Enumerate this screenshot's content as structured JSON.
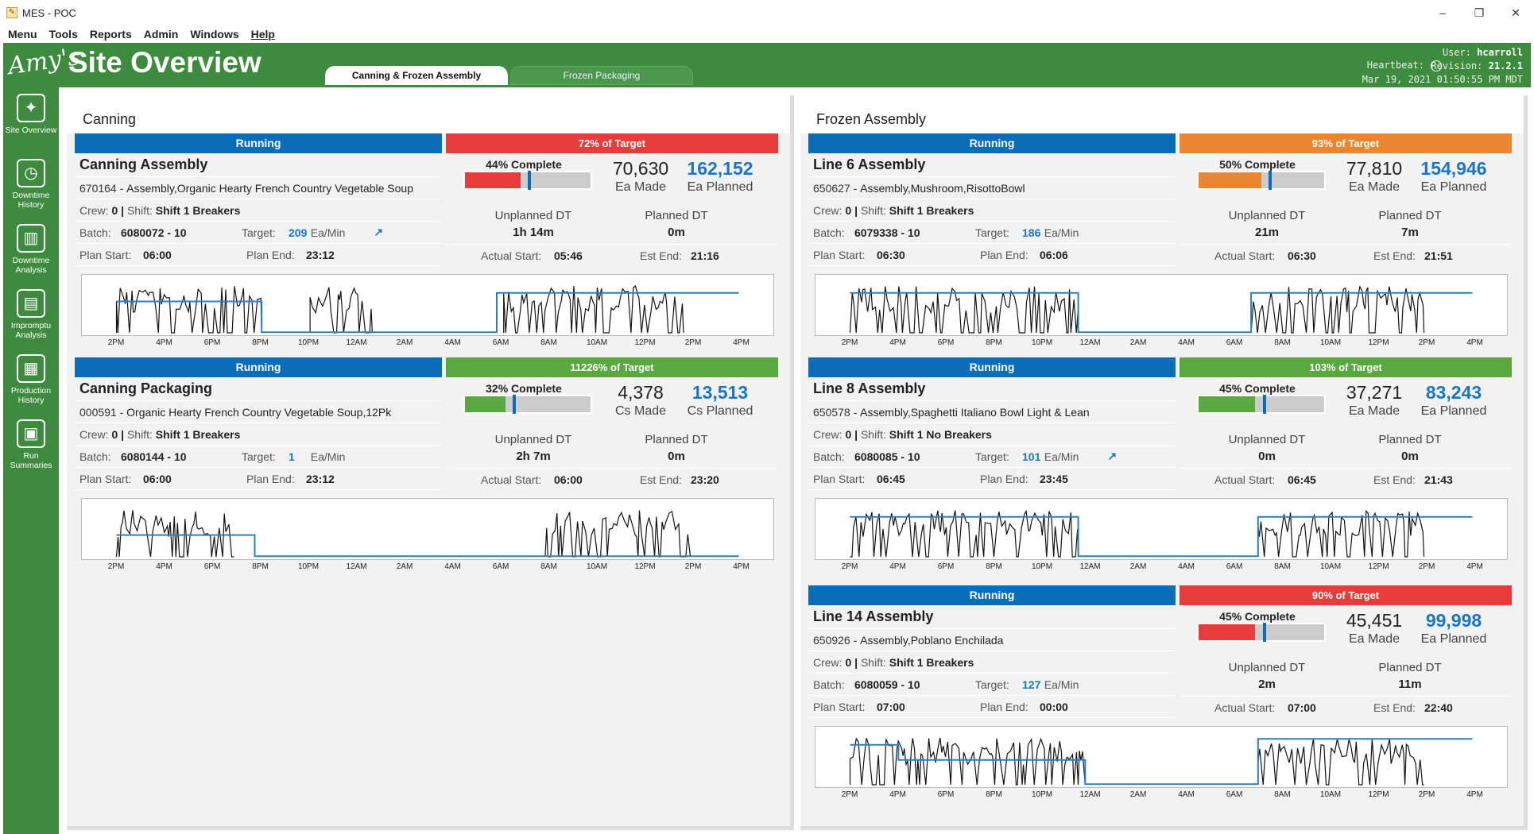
{
  "window": {
    "title": "MES - POC"
  },
  "menu": [
    "Menu",
    "Tools",
    "Reports",
    "Admin",
    "Windows",
    "Help"
  ],
  "header": {
    "logo": "Amy's",
    "title": "Site Overview",
    "tabs": [
      {
        "label": "Canning & Frozen Assembly",
        "active": true
      },
      {
        "label": "Frozen Packaging",
        "active": false
      }
    ],
    "user_label": "User:",
    "user": "hcarroll",
    "heartbeat_label": "Heartbeat:",
    "revision_label": "Revision:",
    "revision": "21.2.1",
    "datetime": "Mar 19, 2021 01:50:55 PM MDT"
  },
  "sidebar": [
    {
      "label": "Site Overview",
      "icon": "site-overview-icon"
    },
    {
      "label": "Downtime History",
      "icon": "clock-icon"
    },
    {
      "label": "Downtime Analysis",
      "icon": "bar-chart-icon"
    },
    {
      "label": "Impromptu Analysis",
      "icon": "impromptu-chart-icon"
    },
    {
      "label": "Production History",
      "icon": "calendar-icon"
    },
    {
      "label": "Run Summaries",
      "icon": "document-icon"
    }
  ],
  "chart_ticks": [
    "2PM",
    "4PM",
    "6PM",
    "8PM",
    "10PM",
    "12AM",
    "2AM",
    "4AM",
    "6AM",
    "8AM",
    "10AM",
    "12PM",
    "2PM",
    "4PM"
  ],
  "colors": {
    "status_blue": "#0a6db8",
    "target_red": "#e83c3a",
    "target_orange": "#e9862f",
    "target_green": "#59a840",
    "header_green": "#3e8b3f",
    "link_blue": "#1a76c2"
  },
  "sections": {
    "canning": "Canning",
    "frozen": "Frozen Assembly"
  },
  "lines": [
    {
      "section": "canning",
      "status": "Running",
      "target_text": "72% of Target",
      "target_pct": 72,
      "name": "Canning Assembly",
      "batch_code": "670164",
      "product": "Assembly,Organic Hearty French Country Vegetable Soup",
      "crew": "0",
      "shift": "Shift 1 Breakers",
      "batch": "6080072 - 10",
      "target_rate": "209",
      "rate_unit": "Ea/Min",
      "trend": true,
      "plan_start": "06:00",
      "plan_end": "23:12",
      "complete_text": "44% Complete",
      "complete_pct": 44,
      "made": "70,630",
      "made_label": "Ea Made",
      "planned": "162,152",
      "planned_label": "Ea Planned",
      "unplanned_dt": "1h 14m",
      "planned_dt": "0m",
      "actual_start": "05:46",
      "est_end": "21:16"
    },
    {
      "section": "canning",
      "status": "Running",
      "target_text": "11226% of Target",
      "target_pct": 11226,
      "name": "Canning Packaging",
      "batch_code": "000591",
      "product": "Organic Hearty French Country Vegetable Soup,12Pk",
      "crew": "0",
      "shift": "Shift 1 Breakers",
      "batch": "6080144 - 10",
      "target_rate": "1",
      "rate_unit": "Ea/Min",
      "trend": false,
      "plan_start": "06:00",
      "plan_end": "23:12",
      "complete_text": "32% Complete",
      "complete_pct": 32,
      "made": "4,378",
      "made_label": "Cs Made",
      "planned": "13,513",
      "planned_label": "Cs Planned",
      "unplanned_dt": "2h 7m",
      "planned_dt": "0m",
      "actual_start": "06:00",
      "est_end": "23:20"
    },
    {
      "section": "frozen",
      "status": "Running",
      "target_text": "93% of Target",
      "target_pct": 93,
      "name": "Line 6 Assembly",
      "batch_code": "650627",
      "product": "Assembly,Mushroom,RisottoBowl",
      "crew": "0",
      "shift": "Shift 1 Breakers",
      "batch": "6079338 - 10",
      "target_rate": "186",
      "rate_unit": "Ea/Min",
      "trend": false,
      "plan_start": "06:30",
      "plan_end": "06:06",
      "complete_text": "50% Complete",
      "complete_pct": 50,
      "made": "77,810",
      "made_label": "Ea Made",
      "planned": "154,946",
      "planned_label": "Ea Planned",
      "unplanned_dt": "21m",
      "planned_dt": "7m",
      "actual_start": "06:30",
      "est_end": "21:51"
    },
    {
      "section": "frozen",
      "status": "Running",
      "target_text": "103% of Target",
      "target_pct": 103,
      "name": "Line 8 Assembly",
      "batch_code": "650578",
      "product": "Assembly,Spaghetti Italiano Bowl Light & Lean",
      "crew": "0",
      "shift": "Shift 1 No Breakers",
      "batch": "6080085 - 10",
      "target_rate": "101",
      "rate_unit": "Ea/Min",
      "trend": true,
      "plan_start": "06:45",
      "plan_end": "23:45",
      "complete_text": "45% Complete",
      "complete_pct": 45,
      "made": "37,271",
      "made_label": "Ea Made",
      "planned": "83,243",
      "planned_label": "Ea Planned",
      "unplanned_dt": "0m",
      "planned_dt": "0m",
      "actual_start": "06:45",
      "est_end": "21:43"
    },
    {
      "section": "frozen",
      "status": "Running",
      "target_text": "90% of Target",
      "target_pct": 90,
      "name": "Line 14 Assembly",
      "batch_code": "650926",
      "product": "Assembly,Poblano Enchilada",
      "crew": "0",
      "shift": "Shift 1 Breakers",
      "batch": "6080059 - 10",
      "target_rate": "127",
      "rate_unit": "Ea/Min",
      "trend": false,
      "plan_start": "07:00",
      "plan_end": "00:00",
      "complete_text": "45% Complete",
      "complete_pct": 45,
      "made": "45,451",
      "made_label": "Ea Made",
      "planned": "99,998",
      "planned_label": "Ea Planned",
      "unplanned_dt": "2m",
      "planned_dt": "11m",
      "actual_start": "07:00",
      "est_end": "22:40"
    }
  ],
  "labels": {
    "crew": "Crew:",
    "shift": "Shift:",
    "batch": "Batch:",
    "target": "Target:",
    "plan_start": "Plan Start:",
    "plan_end": "Plan End:",
    "unplanned_dt": "Unplanned DT",
    "planned_dt": "Planned DT",
    "actual_start": "Actual Start:",
    "est_end": "Est End:"
  }
}
